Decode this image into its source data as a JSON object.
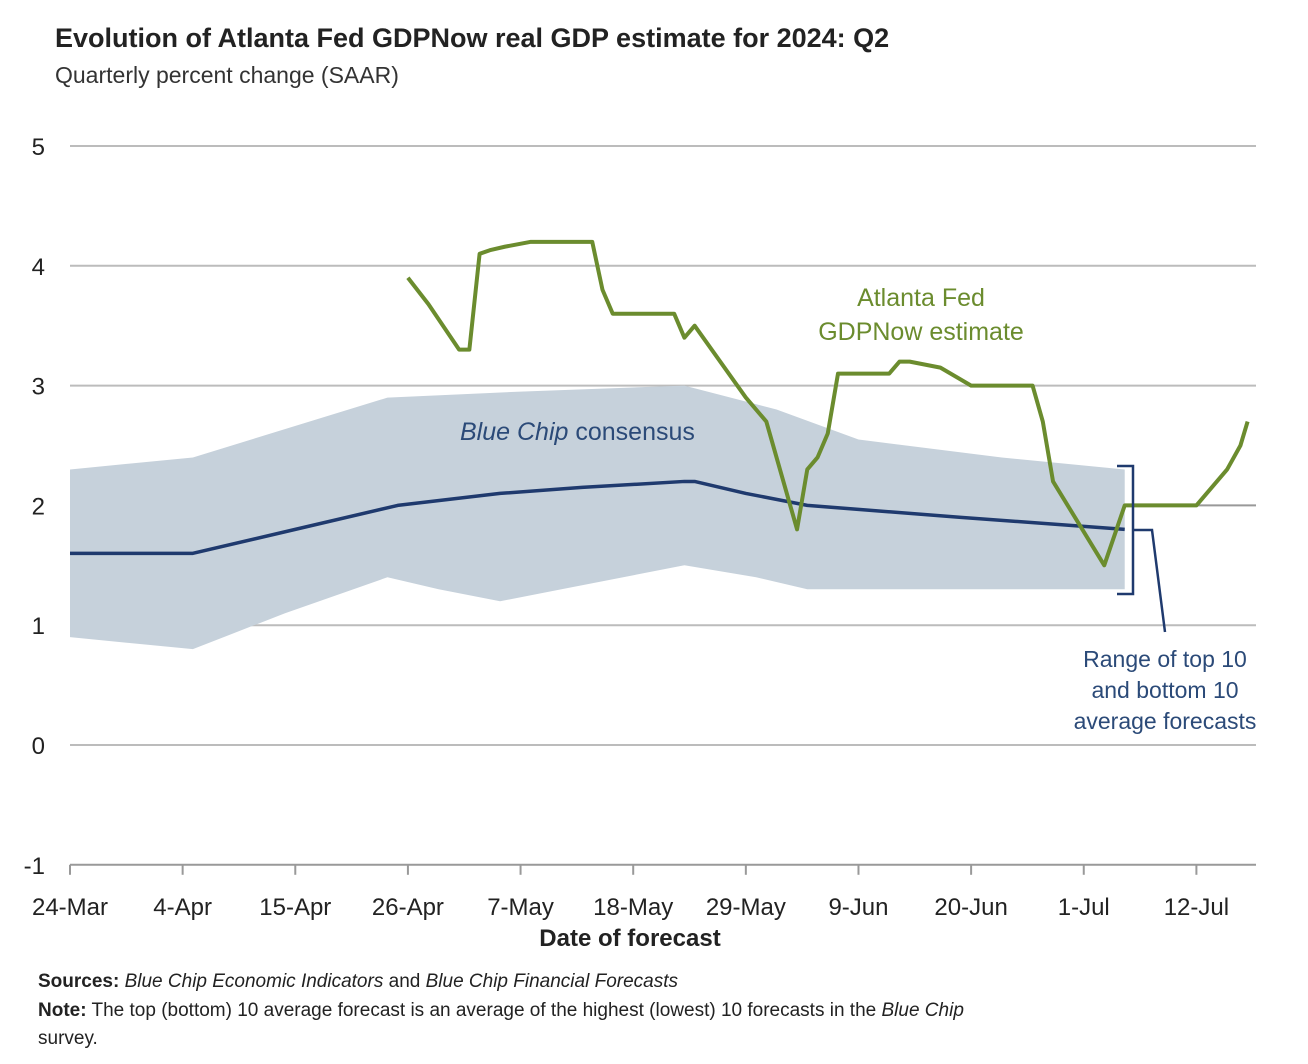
{
  "chart_data": {
    "type": "line",
    "title": "Evolution of Atlanta Fed GDPNow real GDP estimate for 2024: Q2",
    "subtitle": "Quarterly percent change (SAAR)",
    "xlabel": "Date of forecast",
    "ylabel": "",
    "x_unit": "days since 24-Mar-2024",
    "xlim": [
      0,
      115.5
    ],
    "ylim": [
      -1,
      5
    ],
    "grid": true,
    "y_ticks": [
      "5",
      "4",
      "3",
      "2",
      "1",
      "0",
      "-1"
    ],
    "y_tick_values": [
      5,
      4,
      3,
      2,
      1,
      0,
      -1
    ],
    "x_ticks": [
      "24-Mar",
      "4-Apr",
      "15-Apr",
      "26-Apr",
      "7-May",
      "18-May",
      "29-May",
      "9-Jun",
      "20-Jun",
      "1-Jul",
      "12-Jul"
    ],
    "x_tick_values": [
      0,
      11,
      22,
      33,
      44,
      55,
      66,
      77,
      88,
      99,
      110
    ],
    "series": [
      {
        "name": "Atlanta Fed GDPNow estimate",
        "color": "#6b8c2e",
        "x": [
          33,
          35,
          38,
          39,
          40,
          41,
          42.5,
          45,
          51,
          52,
          53,
          59,
          60,
          61,
          66,
          68,
          71,
          72,
          73,
          74,
          75,
          80,
          81,
          82,
          85,
          88,
          94,
          95,
          96,
          101,
          103,
          110,
          113,
          114.3,
          115
        ],
        "y": [
          3.9,
          3.68,
          3.3,
          3.3,
          4.1,
          4.13,
          4.16,
          4.2,
          4.2,
          3.8,
          3.6,
          3.6,
          3.4,
          3.5,
          2.9,
          2.7,
          1.8,
          2.3,
          2.4,
          2.6,
          3.1,
          3.1,
          3.2,
          3.2,
          3.15,
          3.0,
          3.0,
          2.7,
          2.2,
          1.5,
          2.0,
          2.0,
          2.3,
          2.5,
          2.7
        ]
      },
      {
        "name": "Blue Chip consensus",
        "color": "#1f3a6e",
        "x": [
          0,
          12,
          22,
          32,
          42,
          50,
          60,
          61,
          66,
          72,
          87,
          103
        ],
        "y": [
          1.6,
          1.6,
          1.8,
          2.0,
          2.1,
          2.15,
          2.2,
          2.2,
          2.1,
          2.0,
          1.9,
          1.8
        ]
      }
    ],
    "band": {
      "name": "Range of top 10 and bottom 10 average forecasts",
      "color": "#c6d1db",
      "x_upper": [
        0,
        12,
        31,
        44,
        60,
        69,
        77,
        91,
        103
      ],
      "upper": [
        2.3,
        2.4,
        2.9,
        2.95,
        3.0,
        2.8,
        2.55,
        2.4,
        2.3
      ],
      "x_lower": [
        0,
        12,
        21,
        31,
        36,
        42,
        48,
        60,
        67,
        72,
        103
      ],
      "lower": [
        0.9,
        0.8,
        1.1,
        1.4,
        1.3,
        1.2,
        1.3,
        1.5,
        1.4,
        1.3,
        1.3
      ]
    },
    "annotations": {
      "gdpnow_line1": "Atlanta Fed",
      "gdpnow_line2": "GDPNow estimate",
      "consensus_italic": "Blue Chip",
      "consensus_rest": "consensus",
      "range_line1": "Range of top 10",
      "range_line2": "and bottom 10",
      "range_line3": "average forecasts"
    }
  },
  "footer": {
    "sources_label": "Sources:",
    "sources_italic1": "Blue Chip Economic Indicators",
    "sources_and": "and",
    "sources_italic2": "Blue Chip Financial Forecasts",
    "note_label": "Note:",
    "note_text": "The top (bottom) 10 average forecast is an average of the highest (lowest) 10 forecasts in the",
    "note_italic": "Blue Chip",
    "note_line2": "survey."
  }
}
